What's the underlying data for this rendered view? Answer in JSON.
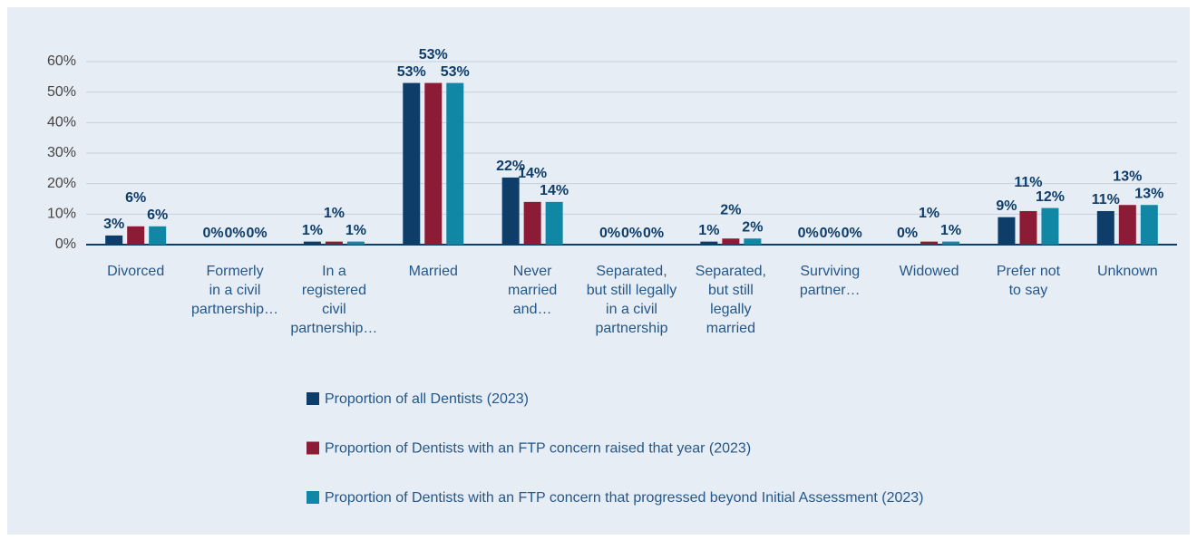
{
  "chart_data": {
    "type": "bar",
    "categories": [
      "Divorced",
      "Formerly\nin a civil\npartnership…",
      "In a\nregistered\ncivil\npartnership…",
      "Married",
      "Never\nmarried\nand…",
      "Separated,\nbut still legally\nin a civil\npartnership",
      "Separated,\nbut still\nlegally\nmarried",
      "Surviving\npartner…",
      "Widowed",
      "Prefer not\nto say",
      "Unknown"
    ],
    "series": [
      {
        "name": "Proportion of all Dentists (2023)",
        "color": "#0e3d6a",
        "values": [
          3,
          0,
          1,
          53,
          22,
          0,
          1,
          0,
          0,
          9,
          11
        ],
        "value_labels": [
          "3%",
          "0%",
          "1%",
          "53%",
          "22%",
          "0%",
          "1%",
          "0%",
          "0%",
          "9%",
          "11%"
        ]
      },
      {
        "name": "Proportion of Dentists with an FTP concern raised that year (2023)",
        "color": "#8c1c36",
        "values": [
          6,
          0,
          1,
          53,
          14,
          0,
          2,
          0,
          1,
          11,
          13
        ],
        "value_labels": [
          "6%",
          "0%",
          "1%",
          "53%",
          "14%",
          "0%",
          "2%",
          "0%",
          "1%",
          "11%",
          "13%"
        ]
      },
      {
        "name": "Proportion of Dentists with an FTP concern that progressed beyond Initial Assessment (2023)",
        "color": "#0f87a5",
        "values": [
          6,
          0,
          1,
          53,
          14,
          0,
          2,
          0,
          1,
          12,
          13
        ],
        "value_labels": [
          "6%",
          "0%",
          "1%",
          "53%",
          "14%",
          "0%",
          "2%",
          "0%",
          "1%",
          "12%",
          "13%"
        ]
      }
    ],
    "ylim": [
      0,
      60
    ],
    "yticks": [
      {
        "value": 0,
        "label": "0%"
      },
      {
        "value": 10,
        "label": "10%"
      },
      {
        "value": 20,
        "label": "20%"
      },
      {
        "value": 30,
        "label": "30%"
      },
      {
        "value": 40,
        "label": "40%"
      },
      {
        "value": 50,
        "label": "50%"
      },
      {
        "value": 60,
        "label": "60%"
      }
    ],
    "grid": true
  }
}
